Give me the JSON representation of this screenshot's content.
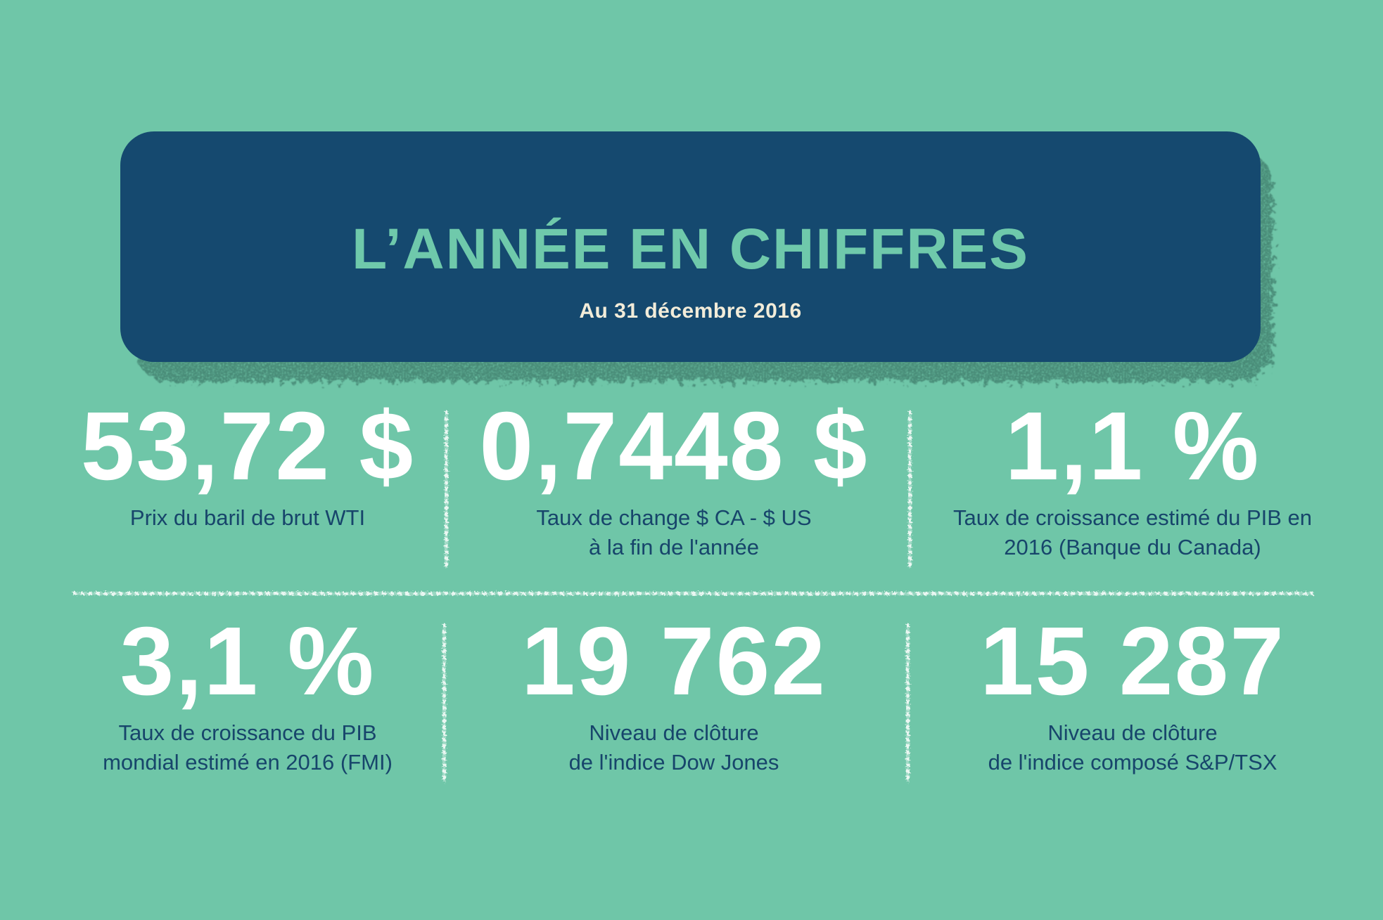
{
  "header": {
    "title": "L’ANNÉE EN CHIFFRES",
    "subtitle": "Au 31 décembre 2016"
  },
  "stats": [
    {
      "value": "53,72 $",
      "label": "Prix du baril de brut WTI"
    },
    {
      "value": "0,7448 $",
      "label": "Taux de change $ CA - $ US\nà la fin de l'année"
    },
    {
      "value": "1,1 %",
      "label": "Taux de croissance estimé du PIB en\n2016 (Banque du Canada)"
    },
    {
      "value": "3,1 %",
      "label": "Taux de croissance du PIB\nmondial estimé en 2016 (FMI)"
    },
    {
      "value": "19 762",
      "label": "Niveau de clôture\nde l'indice Dow Jones"
    },
    {
      "value": "15 287",
      "label": "Niveau de clôture\nde l'indice composé S&P/TSX"
    }
  ],
  "colors": {
    "background": "#6FC6A8",
    "card": "#15496F",
    "card_shadow": "#2F6356",
    "title": "#6FC9AB",
    "subtitle": "#F2ECD9",
    "value": "#FFFFFF",
    "label": "#17456B",
    "divider": "#FFFFFF"
  },
  "chart_data": {
    "type": "table",
    "title": "L’ANNÉE EN CHIFFRES",
    "subtitle": "Au 31 décembre 2016",
    "items": [
      {
        "display": "53,72 $",
        "value": 53.72,
        "unit": "$ US",
        "label": "Prix du baril de brut WTI"
      },
      {
        "display": "0,7448 $",
        "value": 0.7448,
        "unit": "$ US par $ CA",
        "label": "Taux de change $ CA - $ US à la fin de l'année"
      },
      {
        "display": "1,1 %",
        "value": 1.1,
        "unit": "%",
        "label": "Taux de croissance estimé du PIB en 2016 (Banque du Canada)"
      },
      {
        "display": "3,1 %",
        "value": 3.1,
        "unit": "%",
        "label": "Taux de croissance du PIB mondial estimé en 2016 (FMI)"
      },
      {
        "display": "19 762",
        "value": 19762,
        "unit": "points",
        "label": "Niveau de clôture de l'indice Dow Jones"
      },
      {
        "display": "15 287",
        "value": 15287,
        "unit": "points",
        "label": "Niveau de clôture de l'indice composé S&P/TSX"
      }
    ]
  }
}
